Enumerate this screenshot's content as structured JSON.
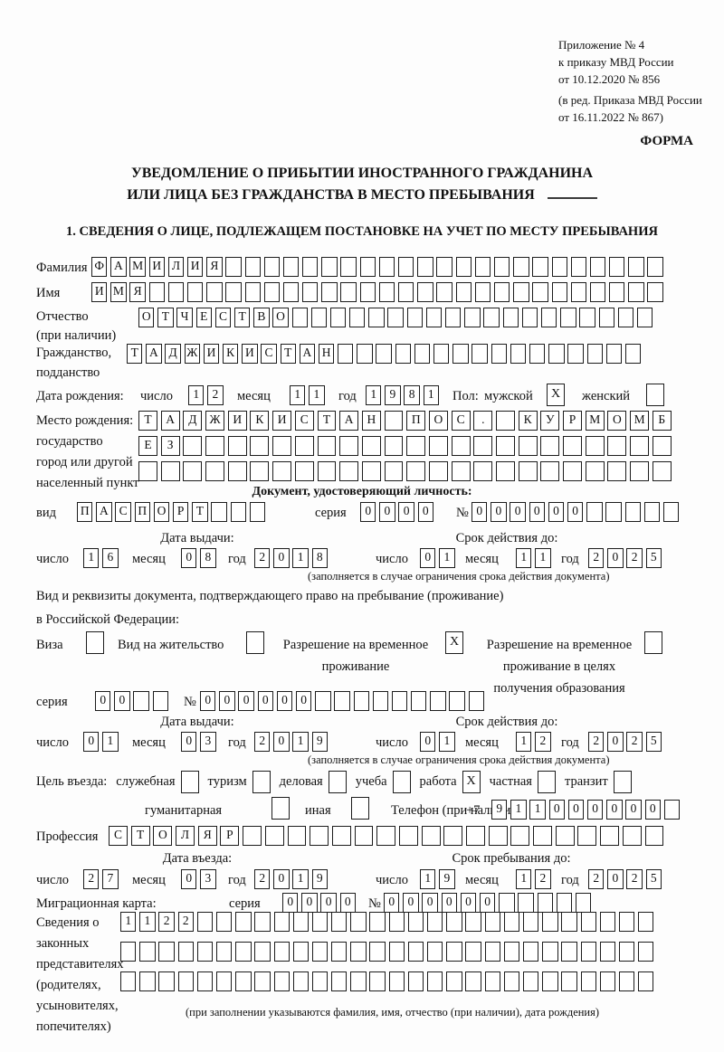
{
  "check_glyph": "X",
  "header": {
    "appendix": [
      "Приложение № 4",
      "к приказу МВД России",
      "от 10.12.2020 № 856"
    ],
    "edition": [
      "(в ред. Приказа МВД России",
      "от 16.11.2022 № 867)"
    ],
    "forma": "ФОРМА"
  },
  "title": {
    "line1": "УВЕДОМЛЕНИЕ О ПРИБЫТИИ ИНОСТРАННОГО ГРАЖДАНИНА",
    "line2": "ИЛИ ЛИЦА БЕЗ ГРАЖДАНСТВА В МЕСТО ПРЕБЫВАНИЯ"
  },
  "section1": "1. СВЕДЕНИЯ О ЛИЦЕ, ПОДЛЕЖАЩЕМ ПОСТАНОВКЕ НА УЧЕТ ПО МЕСТУ ПРЕБЫВАНИЯ",
  "labels": {
    "day": "число",
    "month": "месяц",
    "year": "год",
    "series": "серия",
    "number": "№",
    "issue_date": "Дата выдачи:",
    "valid_until": "Срок действия до:",
    "validity_note": "(заполняется в случае ограничения срока действия документа)"
  },
  "surname": {
    "label": "Фамилия",
    "boxes": {
      "v": "ФАМИЛИЯ",
      "n": 30
    }
  },
  "name": {
    "label": "Имя",
    "boxes": {
      "v": "ИМЯ",
      "n": 30
    }
  },
  "patronymic": {
    "label1": "Отчество",
    "label2": "(при наличии)",
    "boxes": {
      "v": "ОТЧЕСТВО",
      "n": 27
    }
  },
  "citizenship": {
    "label1": "Гражданство,",
    "label2": "подданство",
    "boxes": {
      "v": "ТАДЖИКИСТАН",
      "n": 27
    }
  },
  "birth": {
    "label": "Дата рождения:",
    "day": {
      "v": "12",
      "n": 2
    },
    "month": {
      "v": "11",
      "n": 2
    },
    "year": {
      "v": "1981",
      "n": 4
    }
  },
  "sex": {
    "label": "Пол:",
    "male_label": "мужской",
    "male": true,
    "female_label": "женский",
    "female": false
  },
  "birthplace": {
    "label1": "Место рождения:",
    "label2": "государство",
    "label3": "город или другой",
    "label4": "населенный пункт",
    "row1": {
      "v": "ТАДЖИКИСТАН ПОС. КУРМОМБ",
      "n": 24
    },
    "row2": {
      "v": "ЕЗ",
      "n": 24
    },
    "row3": {
      "v": "",
      "n": 24
    }
  },
  "iddoc": {
    "heading": "Документ, удостоверяющий личность:",
    "type_label": "вид",
    "type": {
      "v": "ПАСПОРТ",
      "n": 10
    },
    "series": {
      "v": "0000",
      "n": 4
    },
    "number": {
      "v": "000000",
      "n": 11
    },
    "issue": {
      "day": {
        "v": "16",
        "n": 2
      },
      "month": {
        "v": "08",
        "n": 2
      },
      "year": {
        "v": "2018",
        "n": 4
      }
    },
    "valid": {
      "day": {
        "v": "01",
        "n": 2
      },
      "month": {
        "v": "11",
        "n": 2
      },
      "year": {
        "v": "2025",
        "n": 4
      }
    }
  },
  "permit": {
    "intro1": "Вид и реквизиты документа, подтверждающего право на пребывание (проживание)",
    "intro2": "в Российской Федерации:",
    "visa_label": "Виза",
    "visa": false,
    "residence_label": "Вид на жительство",
    "residence": false,
    "temp_label1": "Разрешение на временное",
    "temp_label2": "проживание",
    "temp": true,
    "edu_label1": "Разрешение на временное",
    "edu_label2": "проживание в целях",
    "edu_label3": "получения образования",
    "edu": false,
    "series": {
      "v": "00",
      "n": 4
    },
    "number": {
      "v": "000000",
      "n": 15
    },
    "issue": {
      "day": {
        "v": "01",
        "n": 2
      },
      "month": {
        "v": "03",
        "n": 2
      },
      "year": {
        "v": "2019",
        "n": 4
      }
    },
    "valid": {
      "day": {
        "v": "01",
        "n": 2
      },
      "month": {
        "v": "12",
        "n": 2
      },
      "year": {
        "v": "2025",
        "n": 4
      }
    }
  },
  "purpose": {
    "label": "Цель въезда:",
    "options": [
      {
        "label": "служебная",
        "checked": false
      },
      {
        "label": "туризм",
        "checked": false
      },
      {
        "label": "деловая",
        "checked": false
      },
      {
        "label": "учеба",
        "checked": false
      },
      {
        "label": "работа",
        "checked": true
      },
      {
        "label": "частная",
        "checked": false
      },
      {
        "label": "транзит",
        "checked": false
      }
    ],
    "row2": [
      {
        "label": "гуманитарная",
        "checked": false
      },
      {
        "label": "иная",
        "checked": false
      }
    ]
  },
  "phone": {
    "label": "Телефон (при наличии)",
    "prefix": "+7",
    "digits": {
      "v": "911000000",
      "n": 10
    }
  },
  "profession": {
    "label": "Профессия",
    "boxes": {
      "v": "СТОЛЯР",
      "n": 25
    }
  },
  "entry": {
    "heading": "Дата въезда:",
    "day": {
      "v": "27",
      "n": 2
    },
    "month": {
      "v": "03",
      "n": 2
    },
    "year": {
      "v": "2019",
      "n": 4
    }
  },
  "stay": {
    "heading": "Срок пребывания до:",
    "day": {
      "v": "19",
      "n": 2
    },
    "month": {
      "v": "12",
      "n": 2
    },
    "year": {
      "v": "2025",
      "n": 4
    }
  },
  "migcard": {
    "label": "Миграционная карта:",
    "series": {
      "v": "0000",
      "n": 4
    },
    "number": {
      "v": "000000",
      "n": 11
    }
  },
  "reps": {
    "label1": "Сведения о",
    "label2": "законных",
    "label3": "представителях",
    "label4": "(родителях,",
    "label5": "усыновителях,",
    "label6": "попечителях)",
    "row1": {
      "v": "1122",
      "n": 28
    },
    "row2": {
      "v": "",
      "n": 28
    },
    "row3": {
      "v": "",
      "n": 28
    },
    "note": "(при заполнении указываются фамилия, имя, отчество (при наличии), дата рождения)"
  }
}
